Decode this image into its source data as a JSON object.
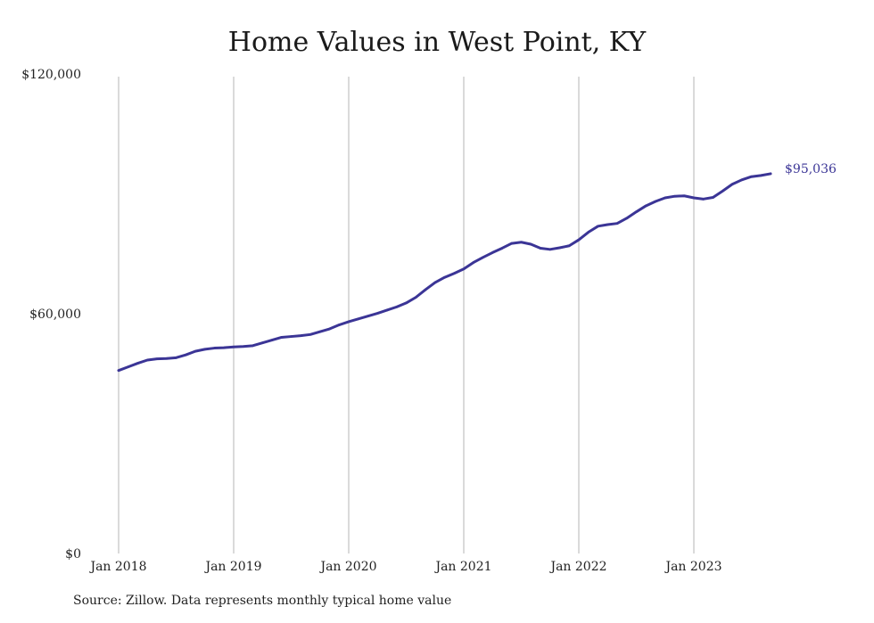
{
  "chart_data": {
    "type": "line",
    "title": "Home Values in West Point, KY",
    "xlabel": "",
    "ylabel": "",
    "ylim": [
      0,
      120000
    ],
    "y_ticks": [
      {
        "value": 0,
        "label": "$0"
      },
      {
        "value": 60000,
        "label": "$60,000"
      },
      {
        "value": 120000,
        "label": "$120,000"
      }
    ],
    "x_ticks": [
      {
        "value": "2018-01",
        "label": "Jan 2018"
      },
      {
        "value": "2019-01",
        "label": "Jan 2019"
      },
      {
        "value": "2020-01",
        "label": "Jan 2020"
      },
      {
        "value": "2021-01",
        "label": "Jan 2021"
      },
      {
        "value": "2022-01",
        "label": "Jan 2022"
      },
      {
        "value": "2023-01",
        "label": "Jan 2023"
      }
    ],
    "xlim": [
      "2018-01",
      "2023-12"
    ],
    "grid": "vertical",
    "series": [
      {
        "color": "#3b3596",
        "end_label": "$95,036",
        "x": [
          "2018-01",
          "2018-02",
          "2018-03",
          "2018-04",
          "2018-05",
          "2018-06",
          "2018-07",
          "2018-08",
          "2018-09",
          "2018-10",
          "2018-11",
          "2018-12",
          "2019-01",
          "2019-02",
          "2019-03",
          "2019-04",
          "2019-05",
          "2019-06",
          "2019-07",
          "2019-08",
          "2019-09",
          "2019-10",
          "2019-11",
          "2019-12",
          "2020-01",
          "2020-02",
          "2020-03",
          "2020-04",
          "2020-05",
          "2020-06",
          "2020-07",
          "2020-08",
          "2020-09",
          "2020-10",
          "2020-11",
          "2020-12",
          "2021-01",
          "2021-02",
          "2021-03",
          "2021-04",
          "2021-05",
          "2021-06",
          "2021-07",
          "2021-08",
          "2021-09",
          "2021-10",
          "2021-11",
          "2021-12",
          "2022-01",
          "2022-02",
          "2022-03",
          "2022-04",
          "2022-05",
          "2022-06",
          "2022-07",
          "2022-08",
          "2022-09",
          "2022-10",
          "2022-11",
          "2022-12",
          "2023-01",
          "2023-02",
          "2023-03",
          "2023-04",
          "2023-05",
          "2023-06",
          "2023-07",
          "2023-08",
          "2023-09"
        ],
        "y": [
          45800,
          46700,
          47600,
          48400,
          48700,
          48800,
          49000,
          49700,
          50600,
          51100,
          51400,
          51500,
          51700,
          51800,
          52000,
          52700,
          53400,
          54100,
          54300,
          54500,
          54800,
          55500,
          56200,
          57200,
          58000,
          58700,
          59400,
          60100,
          60900,
          61700,
          62700,
          64100,
          66000,
          67800,
          69100,
          70100,
          71200,
          72800,
          74100,
          75300,
          76400,
          77600,
          77900,
          77400,
          76400,
          76100,
          76500,
          77000,
          78500,
          80400,
          81900,
          82300,
          82600,
          83900,
          85500,
          87000,
          88100,
          89000,
          89400,
          89500,
          89000,
          88700,
          89100,
          90700,
          92400,
          93500,
          94300,
          94600,
          95036
        ]
      }
    ]
  },
  "source_note": "Source: Zillow. Data represents monthly typical home value"
}
